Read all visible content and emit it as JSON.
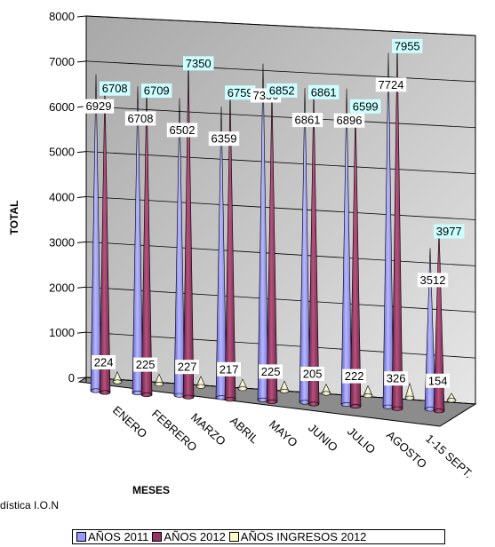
{
  "chart_data": {
    "type": "bar",
    "xlabel": "MESES",
    "ylabel": "TOTAL",
    "ylim": [
      0,
      8000
    ],
    "yticks": [
      0,
      1000,
      2000,
      3000,
      4000,
      5000,
      6000,
      7000,
      8000
    ],
    "grid": true,
    "legend_position": "bottom",
    "categories": [
      "ENERO",
      "FEBRERO",
      "MARZO",
      "ABRIL",
      "MAYO",
      "JUNIO",
      "JULIO",
      "AGOSTO",
      "1-15 SEPT."
    ],
    "series": [
      {
        "name": "AÑOS 2011",
        "color": "#9999ff",
        "values": [
          6929,
          6708,
          6502,
          6359,
          7350,
          6861,
          6896,
          7724,
          3512
        ]
      },
      {
        "name": "AÑOS 2012",
        "color": "#993366",
        "values": [
          6708,
          6709,
          7350,
          6759,
          6852,
          6861,
          6599,
          7955,
          3977
        ]
      },
      {
        "name": "AÑOS INGRESOS 2012",
        "color": "#ffffcc",
        "values": [
          224,
          225,
          227,
          217,
          225,
          205,
          222,
          326,
          154
        ]
      }
    ]
  },
  "source_text": "dística I.O.N"
}
